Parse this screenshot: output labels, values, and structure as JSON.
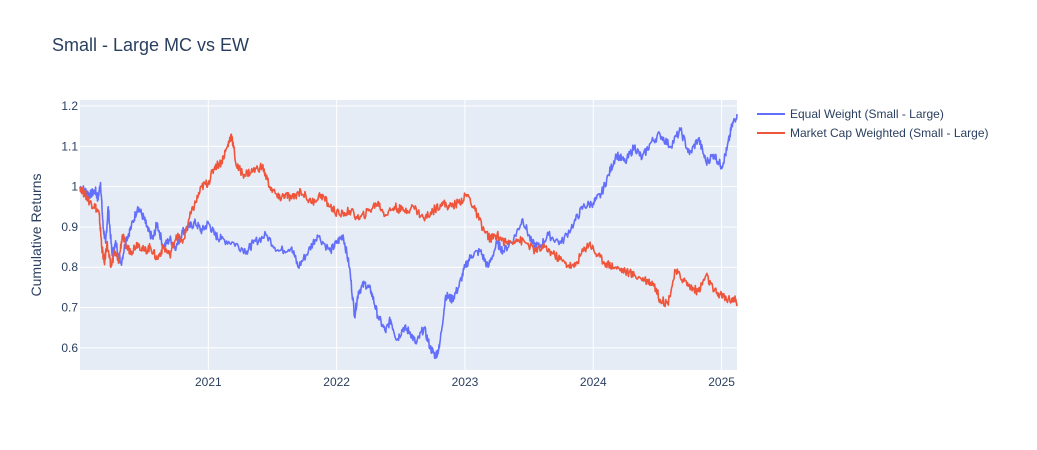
{
  "chart_data": {
    "type": "line",
    "title": "Small - Large MC vs EW",
    "xlabel": "",
    "ylabel": "Cumulative Returns",
    "x_tick_labels": [
      "2021",
      "2022",
      "2023",
      "2024",
      "2025"
    ],
    "x_tick_values": [
      2021.0,
      2022.0,
      2023.0,
      2024.0,
      2025.0
    ],
    "y_tick_labels": [
      "0.6",
      "0.7",
      "0.8",
      "0.9",
      "1",
      "1.1",
      "1.2"
    ],
    "y_tick_values": [
      0.6,
      0.7,
      0.8,
      0.9,
      1.0,
      1.1,
      1.2
    ],
    "xlim": [
      2020.0,
      2025.12
    ],
    "ylim": [
      0.545,
      1.215
    ],
    "grid": true,
    "legend": "top-right",
    "series": [
      {
        "name": "Equal Weight (Small - Large)",
        "color": "#636efa",
        "x": [
          2020.0,
          2020.04,
          2020.08,
          2020.12,
          2020.14,
          2020.16,
          2020.18,
          2020.2,
          2020.22,
          2020.25,
          2020.28,
          2020.32,
          2020.36,
          2020.4,
          2020.45,
          2020.5,
          2020.53,
          2020.57,
          2020.6,
          2020.65,
          2020.7,
          2020.75,
          2020.8,
          2020.85,
          2020.9,
          2020.95,
          2021.0,
          2021.05,
          2021.1,
          2021.2,
          2021.3,
          2021.35,
          2021.45,
          2021.55,
          2021.65,
          2021.7,
          2021.78,
          2021.85,
          2021.95,
          2022.0,
          2022.05,
          2022.1,
          2022.14,
          2022.17,
          2022.22,
          2022.27,
          2022.32,
          2022.38,
          2022.42,
          2022.47,
          2022.52,
          2022.57,
          2022.62,
          2022.68,
          2022.73,
          2022.77,
          2022.8,
          2022.85,
          2022.9,
          2022.95,
          2023.0,
          2023.05,
          2023.12,
          2023.18,
          2023.25,
          2023.3,
          2023.38,
          2023.45,
          2023.52,
          2023.58,
          2023.65,
          2023.75,
          2023.85,
          2023.92,
          2024.0,
          2024.06,
          2024.12,
          2024.18,
          2024.25,
          2024.32,
          2024.38,
          2024.45,
          2024.52,
          2024.6,
          2024.68,
          2024.75,
          2024.82,
          2024.88,
          2024.94,
          2025.0,
          2025.04,
          2025.08,
          2025.12
        ],
        "values": [
          1.0,
          0.99,
          0.98,
          0.99,
          0.97,
          1.01,
          0.9,
          0.86,
          0.95,
          0.83,
          0.86,
          0.81,
          0.87,
          0.9,
          0.95,
          0.92,
          0.89,
          0.87,
          0.91,
          0.85,
          0.87,
          0.85,
          0.89,
          0.9,
          0.91,
          0.89,
          0.91,
          0.88,
          0.87,
          0.86,
          0.84,
          0.86,
          0.88,
          0.84,
          0.85,
          0.8,
          0.84,
          0.88,
          0.84,
          0.86,
          0.88,
          0.8,
          0.68,
          0.74,
          0.76,
          0.74,
          0.68,
          0.64,
          0.67,
          0.62,
          0.65,
          0.64,
          0.61,
          0.65,
          0.6,
          0.58,
          0.6,
          0.73,
          0.72,
          0.75,
          0.8,
          0.83,
          0.84,
          0.8,
          0.86,
          0.84,
          0.87,
          0.92,
          0.86,
          0.85,
          0.88,
          0.86,
          0.91,
          0.95,
          0.96,
          0.98,
          1.03,
          1.08,
          1.06,
          1.1,
          1.07,
          1.11,
          1.13,
          1.1,
          1.14,
          1.08,
          1.12,
          1.06,
          1.08,
          1.05,
          1.09,
          1.15,
          1.18
        ]
      },
      {
        "name": "Market Cap Weighted (Small - Large)",
        "color": "#ef553b",
        "x": [
          2020.0,
          2020.04,
          2020.08,
          2020.12,
          2020.15,
          2020.17,
          2020.19,
          2020.21,
          2020.24,
          2020.27,
          2020.3,
          2020.33,
          2020.36,
          2020.4,
          2020.45,
          2020.5,
          2020.55,
          2020.6,
          2020.65,
          2020.7,
          2020.75,
          2020.8,
          2020.85,
          2020.9,
          2020.95,
          2021.0,
          2021.05,
          2021.1,
          2021.15,
          2021.18,
          2021.22,
          2021.28,
          2021.35,
          2021.42,
          2021.48,
          2021.55,
          2021.6,
          2021.65,
          2021.72,
          2021.8,
          2021.88,
          2021.95,
          2022.02,
          2022.1,
          2022.18,
          2022.25,
          2022.32,
          2022.38,
          2022.45,
          2022.52,
          2022.6,
          2022.68,
          2022.75,
          2022.82,
          2022.88,
          2022.95,
          2023.02,
          2023.08,
          2023.15,
          2023.2,
          2023.25,
          2023.32,
          2023.4,
          2023.48,
          2023.55,
          2023.62,
          2023.7,
          2023.78,
          2023.85,
          2023.92,
          2023.97,
          2024.03,
          2024.1,
          2024.17,
          2024.25,
          2024.32,
          2024.4,
          2024.47,
          2024.52,
          2024.58,
          2024.64,
          2024.7,
          2024.76,
          2024.82,
          2024.88,
          2024.94,
          2025.0,
          2025.05,
          2025.1,
          2025.12
        ],
        "values": [
          1.0,
          0.98,
          0.96,
          0.95,
          0.93,
          0.85,
          0.81,
          0.86,
          0.8,
          0.84,
          0.81,
          0.88,
          0.85,
          0.84,
          0.86,
          0.84,
          0.85,
          0.82,
          0.85,
          0.83,
          0.88,
          0.86,
          0.92,
          0.96,
          1.0,
          1.01,
          1.05,
          1.06,
          1.1,
          1.13,
          1.05,
          1.03,
          1.04,
          1.05,
          1.0,
          0.97,
          0.98,
          0.97,
          0.99,
          0.96,
          0.98,
          0.95,
          0.93,
          0.94,
          0.92,
          0.94,
          0.96,
          0.93,
          0.95,
          0.94,
          0.95,
          0.92,
          0.94,
          0.96,
          0.95,
          0.96,
          0.98,
          0.94,
          0.89,
          0.87,
          0.88,
          0.86,
          0.87,
          0.86,
          0.84,
          0.85,
          0.83,
          0.81,
          0.8,
          0.84,
          0.86,
          0.83,
          0.81,
          0.8,
          0.79,
          0.78,
          0.77,
          0.76,
          0.72,
          0.71,
          0.79,
          0.77,
          0.75,
          0.74,
          0.78,
          0.74,
          0.73,
          0.72,
          0.72,
          0.71
        ]
      }
    ]
  }
}
